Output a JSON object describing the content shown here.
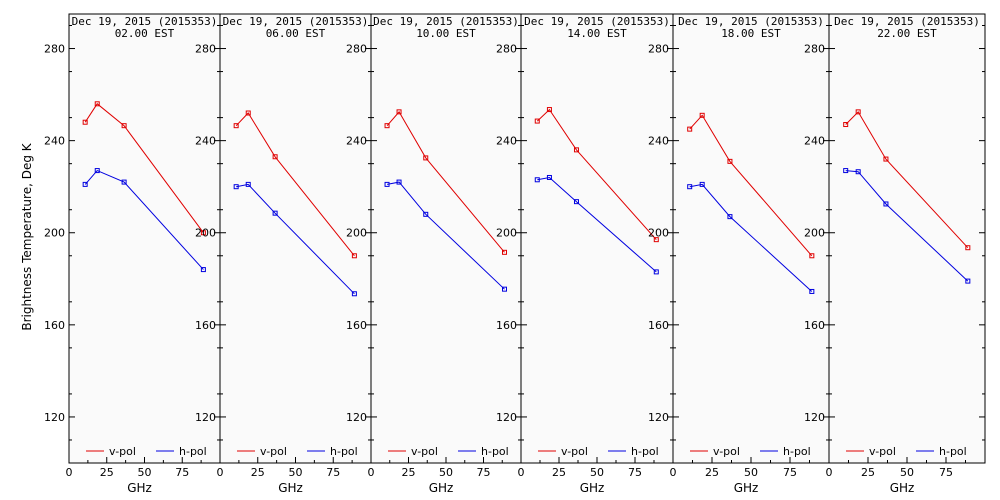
{
  "figure": {
    "ylabel": "Brightness Temperature, Deg K",
    "xlabel": "GHz"
  },
  "colors": {
    "v_pol": "#e00000",
    "h_pol": "#0000e0",
    "panel_bg": "#fafafa",
    "axis": "#000000"
  },
  "chart_data": [
    {
      "type": "line",
      "title": "Dec 19, 2015 (2015353)",
      "subtitle": "02.00 EST",
      "xlabel": "GHz",
      "ylabel": "Brightness Temperature, Deg K",
      "xlim": [
        0,
        100
      ],
      "ylim": [
        100,
        295
      ],
      "xticks": [
        0,
        25,
        50,
        75
      ],
      "yticks": [
        120,
        160,
        200,
        240,
        280
      ],
      "legend": "bottom",
      "series": [
        {
          "name": "v-pol",
          "x": [
            10.7,
            18.7,
            36.5,
            89.0
          ],
          "values": [
            248,
            256,
            246.5,
            200
          ]
        },
        {
          "name": "h-pol",
          "x": [
            10.7,
            18.7,
            36.5,
            89.0
          ],
          "values": [
            221,
            227,
            222,
            184
          ]
        }
      ]
    },
    {
      "type": "line",
      "title": "Dec 19, 2015 (2015353)",
      "subtitle": "06.00 EST",
      "xlabel": "GHz",
      "ylabel": "Brightness Temperature, Deg K",
      "xlim": [
        0,
        100
      ],
      "ylim": [
        100,
        295
      ],
      "xticks": [
        0,
        25,
        50,
        75
      ],
      "yticks": [
        120,
        160,
        200,
        240,
        280
      ],
      "legend": "bottom",
      "series": [
        {
          "name": "v-pol",
          "x": [
            10.7,
            18.7,
            36.5,
            89.0
          ],
          "values": [
            246.5,
            252,
            233,
            190
          ]
        },
        {
          "name": "h-pol",
          "x": [
            10.7,
            18.7,
            36.5,
            89.0
          ],
          "values": [
            220,
            221,
            208.5,
            173.5
          ]
        }
      ]
    },
    {
      "type": "line",
      "title": "Dec 19, 2015 (2015353)",
      "subtitle": "10.00 EST",
      "xlabel": "GHz",
      "ylabel": "Brightness Temperature, Deg K",
      "xlim": [
        0,
        100
      ],
      "ylim": [
        100,
        295
      ],
      "xticks": [
        0,
        25,
        50,
        75
      ],
      "yticks": [
        120,
        160,
        200,
        240,
        280
      ],
      "legend": "bottom",
      "series": [
        {
          "name": "v-pol",
          "x": [
            10.7,
            18.7,
            36.5,
            89.0
          ],
          "values": [
            246.5,
            252.5,
            232.5,
            191.5
          ]
        },
        {
          "name": "h-pol",
          "x": [
            10.7,
            18.7,
            36.5,
            89.0
          ],
          "values": [
            221,
            222,
            208,
            175.5
          ]
        }
      ]
    },
    {
      "type": "line",
      "title": "Dec 19, 2015 (2015353)",
      "subtitle": "14.00 EST",
      "xlabel": "GHz",
      "ylabel": "Brightness Temperature, Deg K",
      "xlim": [
        0,
        100
      ],
      "ylim": [
        100,
        295
      ],
      "xticks": [
        0,
        25,
        50,
        75
      ],
      "yticks": [
        120,
        160,
        200,
        240,
        280
      ],
      "legend": "bottom",
      "series": [
        {
          "name": "v-pol",
          "x": [
            10.7,
            18.7,
            36.5,
            89.0
          ],
          "values": [
            248.5,
            253.5,
            236,
            197
          ]
        },
        {
          "name": "h-pol",
          "x": [
            10.7,
            18.7,
            36.5,
            89.0
          ],
          "values": [
            223,
            224,
            213.5,
            183
          ]
        }
      ]
    },
    {
      "type": "line",
      "title": "Dec 19, 2015 (2015353)",
      "subtitle": "18.00 EST",
      "xlabel": "GHz",
      "ylabel": "Brightness Temperature, Deg K",
      "xlim": [
        0,
        100
      ],
      "ylim": [
        100,
        295
      ],
      "xticks": [
        0,
        25,
        50,
        75
      ],
      "yticks": [
        120,
        160,
        200,
        240,
        280
      ],
      "legend": "bottom",
      "series": [
        {
          "name": "v-pol",
          "x": [
            10.7,
            18.7,
            36.5,
            89.0
          ],
          "values": [
            245,
            251,
            231,
            190
          ]
        },
        {
          "name": "h-pol",
          "x": [
            10.7,
            18.7,
            36.5,
            89.0
          ],
          "values": [
            220,
            221,
            207,
            174.5
          ]
        }
      ]
    },
    {
      "type": "line",
      "title": "Dec 19, 2015 (2015353)",
      "subtitle": "22.00 EST",
      "xlabel": "GHz",
      "ylabel": "Brightness Temperature, Deg K",
      "xlim": [
        0,
        100
      ],
      "ylim": [
        100,
        295
      ],
      "xticks": [
        0,
        25,
        50,
        75
      ],
      "yticks": [
        120,
        160,
        200,
        240,
        280
      ],
      "legend": "bottom",
      "series": [
        {
          "name": "v-pol",
          "x": [
            10.7,
            18.7,
            36.5,
            89.0
          ],
          "values": [
            247,
            252.5,
            232,
            193.5
          ]
        },
        {
          "name": "h-pol",
          "x": [
            10.7,
            18.7,
            36.5,
            89.0
          ],
          "values": [
            227,
            226.5,
            212.5,
            179
          ]
        }
      ]
    }
  ]
}
